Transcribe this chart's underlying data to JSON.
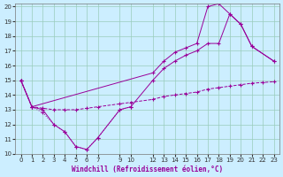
{
  "xlabel": "Windchill (Refroidissement éolien,°C)",
  "background_color": "#cceeff",
  "grid_color": "#99ccbb",
  "line_color": "#990099",
  "xlim": [
    -0.5,
    23.5
  ],
  "ylim": [
    10,
    20.2
  ],
  "yticks": [
    10,
    11,
    12,
    13,
    14,
    15,
    16,
    17,
    18,
    19,
    20
  ],
  "xticks": [
    0,
    1,
    2,
    3,
    4,
    5,
    6,
    7,
    9,
    10,
    12,
    13,
    14,
    15,
    16,
    17,
    18,
    19,
    20,
    21,
    22,
    23
  ],
  "series1_solid": {
    "x": [
      0,
      1,
      2,
      3,
      4,
      5,
      6,
      7,
      9,
      10,
      12,
      13,
      14,
      15,
      16,
      17,
      18,
      19,
      20,
      21,
      23
    ],
    "y": [
      15,
      13.2,
      13.0,
      12.0,
      11.5,
      10.5,
      10.3,
      11.1,
      13.0,
      13.2,
      15.0,
      15.8,
      16.3,
      16.7,
      17.0,
      17.5,
      17.5,
      19.5,
      18.8,
      17.3,
      16.3
    ]
  },
  "series2_solid": {
    "x": [
      0,
      1,
      12,
      13,
      14,
      15,
      16,
      17,
      18,
      19,
      20,
      21,
      23
    ],
    "y": [
      15,
      13.2,
      15.5,
      16.3,
      16.9,
      17.2,
      17.5,
      20.0,
      20.2,
      19.5,
      18.8,
      17.3,
      16.3
    ]
  },
  "series3_dashed": {
    "x": [
      0,
      1,
      2,
      3,
      4,
      5,
      6,
      7,
      9,
      10,
      12,
      13,
      14,
      15,
      16,
      17,
      18,
      19,
      20,
      21,
      22,
      23
    ],
    "y": [
      15,
      13.2,
      13.1,
      13.0,
      13.0,
      13.0,
      13.1,
      13.2,
      13.4,
      13.5,
      13.7,
      13.9,
      14.0,
      14.1,
      14.2,
      14.4,
      14.5,
      14.6,
      14.7,
      14.8,
      14.85,
      14.9
    ]
  },
  "series4_dotted": {
    "x": [
      0,
      1,
      2,
      3,
      4,
      5,
      6,
      7,
      9,
      10
    ],
    "y": [
      15,
      13.2,
      12.8,
      12.0,
      11.5,
      10.5,
      10.3,
      11.1,
      13.0,
      13.2
    ]
  }
}
